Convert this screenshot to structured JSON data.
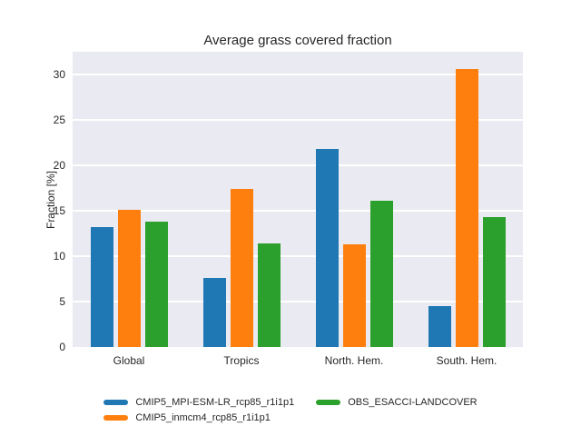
{
  "figure": {
    "background": "#ffffff",
    "plot_background": "#eaeaf2",
    "grid_color": "#ffffff",
    "text_color": "#262626"
  },
  "chart_data": {
    "type": "bar",
    "title": "Average grass covered fraction",
    "xlabel": "",
    "ylabel": "Fraction [%]",
    "categories": [
      "Global",
      "Tropics",
      "North. Hem.",
      "South. Hem."
    ],
    "series": [
      {
        "name": "CMIP5_MPI-ESM-LR_rcp85_r1i1p1",
        "color": "#1f77b4",
        "values": [
          13.2,
          7.6,
          21.8,
          4.5
        ]
      },
      {
        "name": "CMIP5_inmcm4_rcp85_r1i1p1",
        "color": "#ff7f0e",
        "values": [
          15.1,
          17.4,
          11.3,
          30.6
        ]
      },
      {
        "name": "OBS_ESACCI-LANDCOVER",
        "color": "#2ca02c",
        "values": [
          13.8,
          11.4,
          16.1,
          14.3
        ]
      }
    ],
    "ylim": [
      0,
      32.5
    ],
    "yticks": [
      0,
      5,
      10,
      15,
      20,
      25,
      30
    ],
    "grid": true,
    "legend_position": "bottom",
    "legend_columns": 2
  }
}
